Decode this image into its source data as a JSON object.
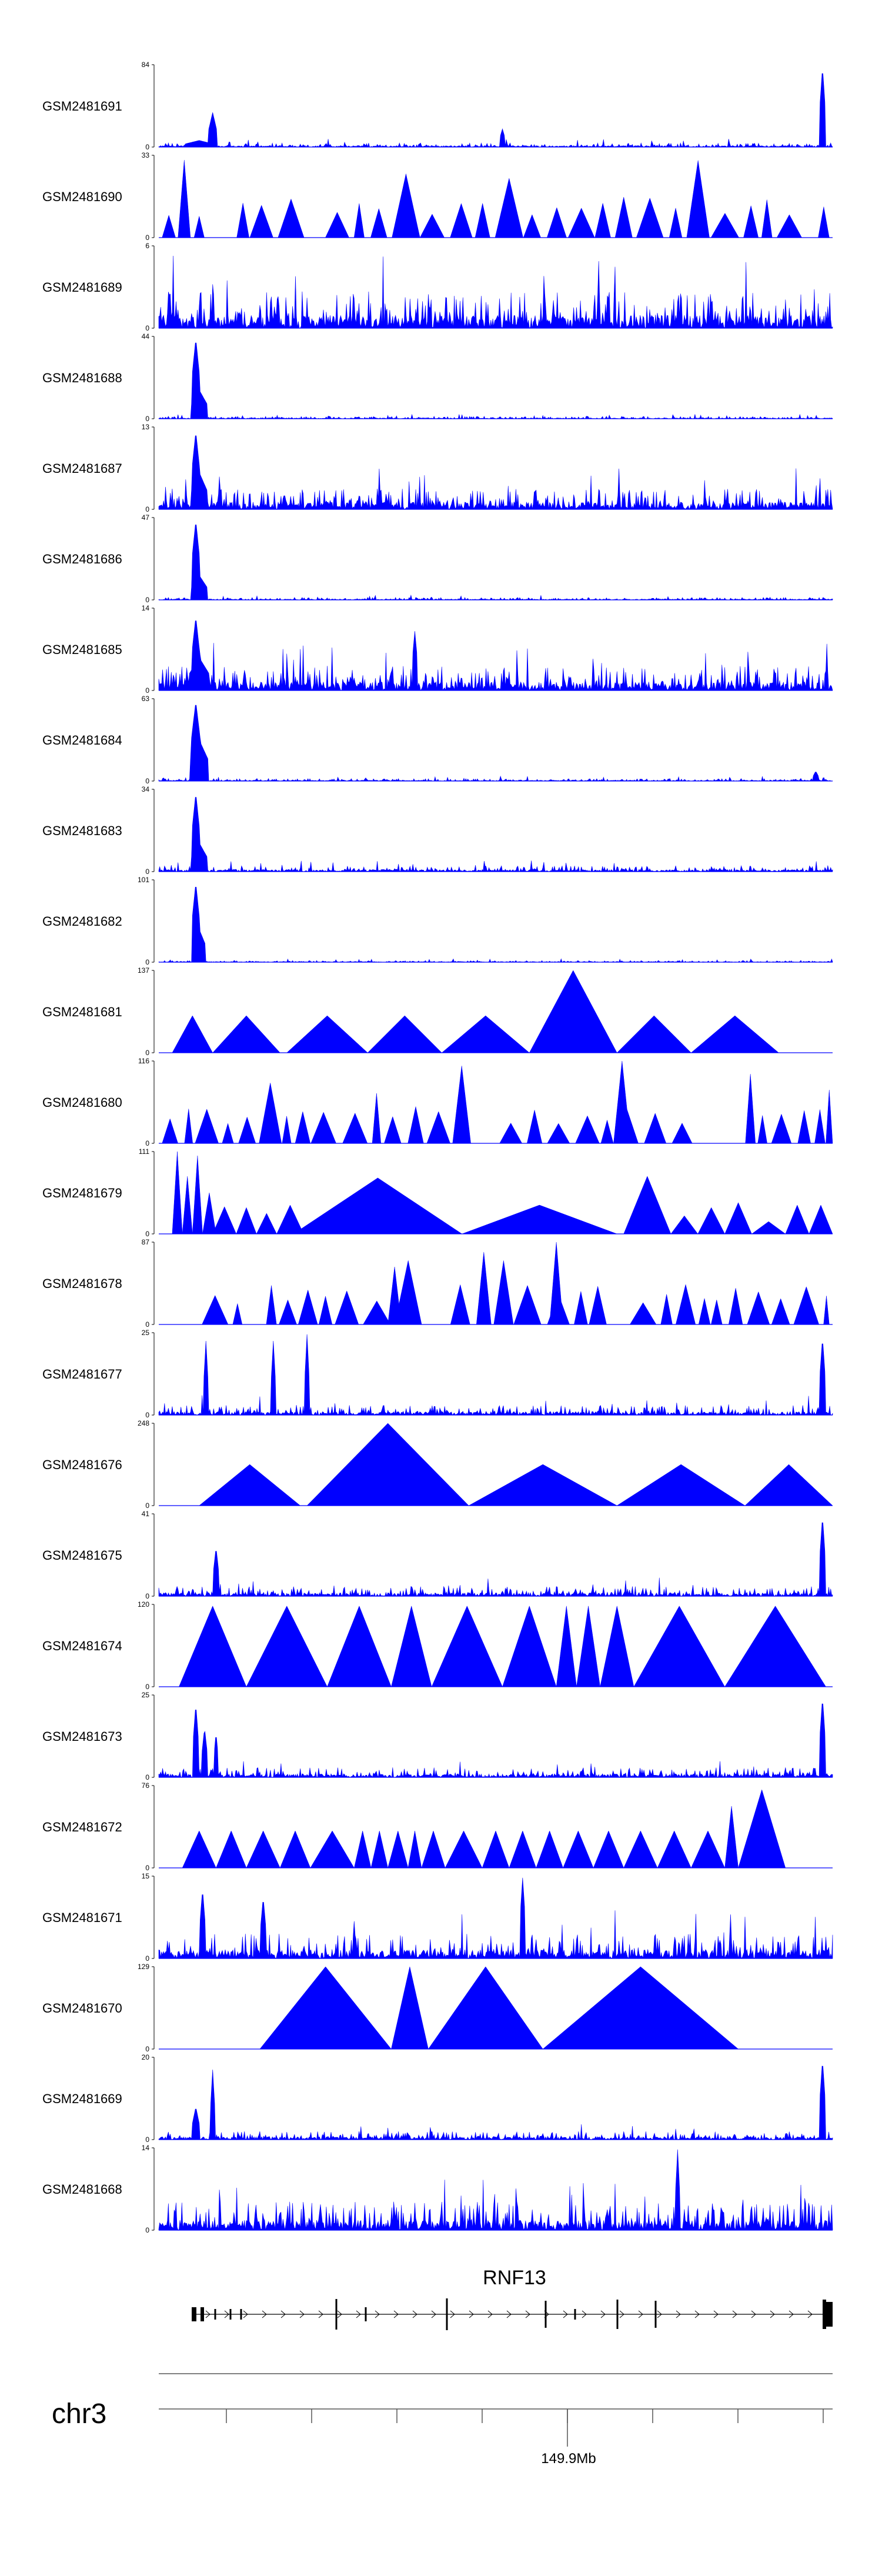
{
  "colors": {
    "signal": "#0000ff",
    "axis": "#000000",
    "ruler": "#555555",
    "gene": "#000000"
  },
  "chart_data": {
    "type": "area",
    "region": {
      "chromosome": "chr3",
      "center_label": "149.9Mb",
      "ruler_ticks": 9
    },
    "gene": {
      "name": "RNF13",
      "strand": "+",
      "exons": 14
    },
    "tracks": [
      {
        "name": "GSM2481691",
        "ymax": 84,
        "style": "spiky",
        "noise": 0.05,
        "peaks": [
          [
            0.06,
            0.08,
            0.02
          ],
          [
            0.08,
            0.42,
            0.006
          ],
          [
            0.51,
            0.22,
            0.004
          ],
          [
            0.985,
            0.98,
            0.004
          ]
        ]
      },
      {
        "name": "GSM2481690",
        "ymax": 33,
        "style": "tri",
        "seed": 2,
        "density": 0.42
      },
      {
        "name": "GSM2481689",
        "ymax": 6,
        "style": "spiky",
        "noise": 0.45,
        "peaks": []
      },
      {
        "name": "GSM2481688",
        "ymax": 44,
        "style": "spiky",
        "noise": 0.03,
        "peaks": [
          [
            0.055,
            0.98,
            0.006
          ],
          [
            0.06,
            0.35,
            0.012
          ]
        ]
      },
      {
        "name": "GSM2481687",
        "ymax": 13,
        "style": "spiky",
        "noise": 0.25,
        "peaks": [
          [
            0.055,
            0.95,
            0.006
          ],
          [
            0.06,
            0.45,
            0.012
          ]
        ]
      },
      {
        "name": "GSM2481686",
        "ymax": 47,
        "style": "spiky",
        "noise": 0.03,
        "peaks": [
          [
            0.055,
            0.97,
            0.006
          ],
          [
            0.06,
            0.3,
            0.012
          ]
        ]
      },
      {
        "name": "GSM2481685",
        "ymax": 14,
        "style": "spiky",
        "noise": 0.3,
        "peaks": [
          [
            0.055,
            0.9,
            0.006
          ],
          [
            0.06,
            0.4,
            0.015
          ],
          [
            0.38,
            0.72,
            0.004
          ]
        ]
      },
      {
        "name": "GSM2481684",
        "ymax": 63,
        "style": "spiky",
        "noise": 0.03,
        "peaks": [
          [
            0.055,
            0.97,
            0.007
          ],
          [
            0.06,
            0.5,
            0.014
          ],
          [
            0.975,
            0.12,
            0.004
          ]
        ]
      },
      {
        "name": "GSM2481683",
        "ymax": 34,
        "style": "spiky",
        "noise": 0.07,
        "peaks": [
          [
            0.055,
            0.96,
            0.006
          ],
          [
            0.06,
            0.35,
            0.012
          ]
        ]
      },
      {
        "name": "GSM2481682",
        "ymax": 101,
        "style": "spiky",
        "noise": 0.02,
        "peaks": [
          [
            0.055,
            0.97,
            0.006
          ],
          [
            0.06,
            0.4,
            0.01
          ]
        ]
      },
      {
        "name": "GSM2481681",
        "ymax": 137,
        "style": "triset",
        "tris": [
          [
            0.02,
            0.08,
            0.45
          ],
          [
            0.08,
            0.18,
            0.45
          ],
          [
            0.19,
            0.31,
            0.45
          ],
          [
            0.31,
            0.42,
            0.45
          ],
          [
            0.42,
            0.55,
            0.45
          ],
          [
            0.55,
            0.68,
            1.0
          ],
          [
            0.68,
            0.79,
            0.45
          ],
          [
            0.79,
            0.92,
            0.45
          ]
        ]
      },
      {
        "name": "GSM2481680",
        "ymax": 116,
        "style": "tri",
        "seed": 12,
        "density": 0.3,
        "extra": [
          [
            0.675,
            0.7,
            1.0
          ],
          [
            0.99,
            1.0,
            0.65
          ]
        ]
      },
      {
        "name": "GSM2481679",
        "ymax": 111,
        "style": "triset",
        "tris": [
          [
            0.02,
            0.035,
            1.0
          ],
          [
            0.035,
            0.05,
            0.7
          ],
          [
            0.05,
            0.065,
            0.95
          ],
          [
            0.065,
            0.085,
            0.5
          ],
          [
            0.08,
            0.115,
            0.33
          ],
          [
            0.115,
            0.145,
            0.32
          ],
          [
            0.145,
            0.175,
            0.25
          ],
          [
            0.175,
            0.215,
            0.35
          ],
          [
            0.2,
            0.45,
            0.68
          ],
          [
            0.45,
            0.68,
            0.35
          ],
          [
            0.69,
            0.76,
            0.7
          ],
          [
            0.76,
            0.8,
            0.22
          ],
          [
            0.8,
            0.84,
            0.32
          ],
          [
            0.84,
            0.88,
            0.38
          ],
          [
            0.88,
            0.93,
            0.15
          ],
          [
            0.93,
            0.965,
            0.35
          ],
          [
            0.965,
            1.0,
            0.35
          ]
        ]
      },
      {
        "name": "GSM2481678",
        "ymax": 87,
        "style": "tri",
        "seed": 14,
        "density": 0.4,
        "extra": [
          [
            0.34,
            0.36,
            0.7
          ],
          [
            0.58,
            0.6,
            1.0
          ]
        ]
      },
      {
        "name": "GSM2481677",
        "ymax": 25,
        "style": "spiky",
        "noise": 0.12,
        "peaks": [
          [
            0.07,
            0.9,
            0.003
          ],
          [
            0.17,
            0.9,
            0.003
          ],
          [
            0.22,
            0.98,
            0.003
          ],
          [
            0.985,
            0.95,
            0.004
          ]
        ]
      },
      {
        "name": "GSM2481676",
        "ymax": 248,
        "style": "triset",
        "tris": [
          [
            0.06,
            0.21,
            0.5
          ],
          [
            0.22,
            0.46,
            1.0
          ],
          [
            0.46,
            0.68,
            0.5
          ],
          [
            0.68,
            0.87,
            0.5
          ],
          [
            0.87,
            1.0,
            0.5
          ]
        ]
      },
      {
        "name": "GSM2481675",
        "ymax": 41,
        "style": "spiky",
        "noise": 0.12,
        "peaks": [
          [
            0.085,
            0.6,
            0.004
          ],
          [
            0.985,
            0.98,
            0.004
          ]
        ]
      },
      {
        "name": "GSM2481674",
        "ymax": 120,
        "style": "triset",
        "tris": [
          [
            0.03,
            0.13,
            0.98
          ],
          [
            0.13,
            0.25,
            0.98
          ],
          [
            0.25,
            0.345,
            0.98
          ],
          [
            0.345,
            0.405,
            0.98
          ],
          [
            0.405,
            0.51,
            0.98
          ],
          [
            0.51,
            0.59,
            0.98
          ],
          [
            0.59,
            0.62,
            0.98
          ],
          [
            0.62,
            0.655,
            0.98
          ],
          [
            0.655,
            0.705,
            0.98
          ],
          [
            0.705,
            0.84,
            0.98
          ],
          [
            0.84,
            0.99,
            0.98
          ]
        ]
      },
      {
        "name": "GSM2481673",
        "ymax": 25,
        "style": "spiky",
        "noise": 0.12,
        "peaks": [
          [
            0.055,
            0.9,
            0.004
          ],
          [
            0.068,
            0.6,
            0.004
          ],
          [
            0.085,
            0.55,
            0.003
          ],
          [
            0.985,
            0.98,
            0.004
          ]
        ]
      },
      {
        "name": "GSM2481672",
        "ymax": 76,
        "style": "triset",
        "tris": [
          [
            0.035,
            0.085,
            0.45
          ],
          [
            0.085,
            0.13,
            0.45
          ],
          [
            0.13,
            0.18,
            0.45
          ],
          [
            0.18,
            0.225,
            0.45
          ],
          [
            0.225,
            0.29,
            0.45
          ],
          [
            0.29,
            0.315,
            0.45
          ],
          [
            0.315,
            0.34,
            0.45
          ],
          [
            0.34,
            0.37,
            0.45
          ],
          [
            0.37,
            0.39,
            0.45
          ],
          [
            0.39,
            0.425,
            0.45
          ],
          [
            0.425,
            0.48,
            0.45
          ],
          [
            0.48,
            0.52,
            0.45
          ],
          [
            0.52,
            0.56,
            0.45
          ],
          [
            0.56,
            0.6,
            0.45
          ],
          [
            0.6,
            0.645,
            0.45
          ],
          [
            0.645,
            0.69,
            0.45
          ],
          [
            0.69,
            0.74,
            0.45
          ],
          [
            0.74,
            0.79,
            0.45
          ],
          [
            0.79,
            0.84,
            0.45
          ],
          [
            0.84,
            0.86,
            0.75
          ],
          [
            0.86,
            0.93,
            0.95
          ]
        ]
      },
      {
        "name": "GSM2481671",
        "ymax": 15,
        "style": "spiky",
        "noise": 0.3,
        "peaks": [
          [
            0.065,
            0.85,
            0.004
          ],
          [
            0.155,
            0.75,
            0.004
          ],
          [
            0.54,
            0.98,
            0.004
          ]
        ]
      },
      {
        "name": "GSM2481670",
        "ymax": 129,
        "style": "triset",
        "tris": [
          [
            0.15,
            0.345,
            1.0
          ],
          [
            0.345,
            0.4,
            1.0
          ],
          [
            0.4,
            0.57,
            1.0
          ],
          [
            0.57,
            0.86,
            1.0
          ]
        ]
      },
      {
        "name": "GSM2481669",
        "ymax": 20,
        "style": "spiky",
        "noise": 0.1,
        "peaks": [
          [
            0.055,
            0.4,
            0.005
          ],
          [
            0.08,
            0.85,
            0.003
          ],
          [
            0.985,
            0.98,
            0.004
          ]
        ]
      },
      {
        "name": "GSM2481668",
        "ymax": 14,
        "style": "spiky",
        "noise": 0.35,
        "peaks": [
          [
            0.77,
            0.98,
            0.003
          ]
        ]
      }
    ]
  }
}
